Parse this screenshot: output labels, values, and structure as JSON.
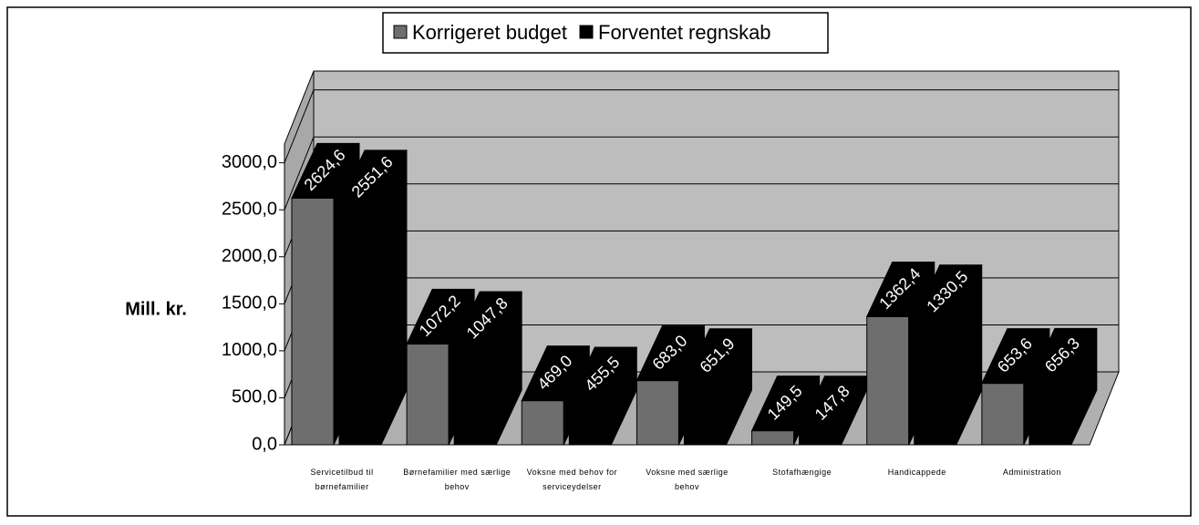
{
  "chart_data": {
    "type": "bar3d",
    "y_label": "Mill. kr.",
    "categories": [
      "Servicetilbud til børnefamilier",
      "Børnefamilier med særlige behov",
      "Voksne med behov for serviceydelser",
      "Voksne med særlige behov",
      "Stofafhængige",
      "Handicappede",
      "Administration"
    ],
    "series": [
      {
        "name": "Korrigeret budget",
        "color": "#6e6e6e",
        "values": [
          2624.6,
          1072.2,
          469.0,
          683.0,
          149.5,
          1362.4,
          653.6
        ],
        "value_labels": [
          "2624,6",
          "1072,2",
          "469,0",
          "683,0",
          "149,5",
          "1362,4",
          "653,6"
        ]
      },
      {
        "name": "Forventet regnskab",
        "color": "#000000",
        "values": [
          2551.6,
          1047.8,
          455.5,
          651.9,
          147.8,
          1330.5,
          656.3
        ],
        "value_labels": [
          "2551,6",
          "1047,8",
          "455,5",
          "651,9",
          "147,8",
          "1330,5",
          "656,3"
        ]
      }
    ],
    "ylim": [
      0,
      3200
    ],
    "yticks": [
      {
        "value": 0,
        "label": "0,0"
      },
      {
        "value": 500,
        "label": "500,0"
      },
      {
        "value": 1000,
        "label": "1000,0"
      },
      {
        "value": 1500,
        "label": "1500,0"
      },
      {
        "value": 2000,
        "label": "2000,0"
      },
      {
        "value": 2500,
        "label": "2500,0"
      },
      {
        "value": 3000,
        "label": "3000,0"
      }
    ],
    "grid": true,
    "legend": "top"
  }
}
